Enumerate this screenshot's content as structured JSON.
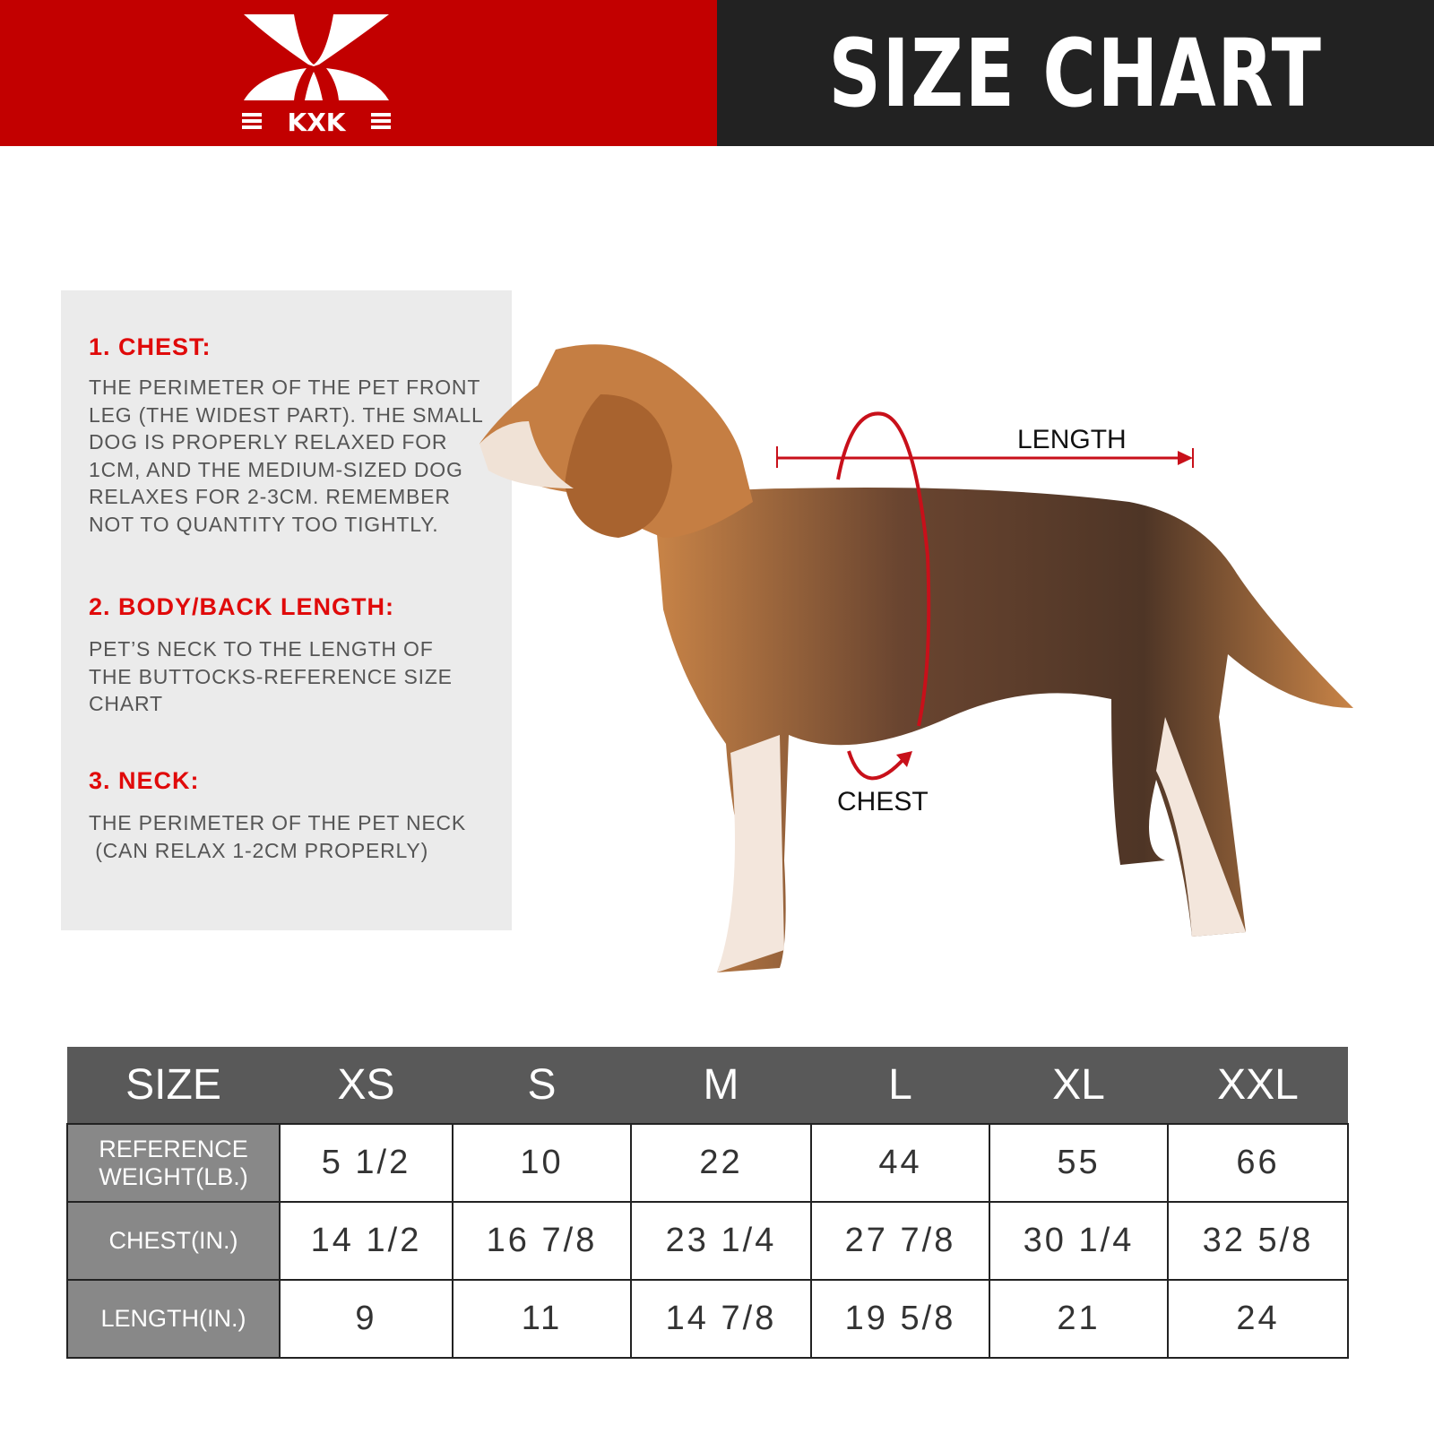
{
  "header": {
    "brand": "KXK",
    "title": "SIZE CHART",
    "colors": {
      "brand_red": "#c20000",
      "dark": "#222222"
    }
  },
  "guide": [
    {
      "heading": "1. CHEST:",
      "body": "THE PERIMETER OF THE PET FRONT\nLEG (THE WIDEST PART). THE SMALL\nDOG IS PROPERLY RELAXED FOR\n1CM, AND THE MEDIUM-SIZED DOG\nRELAXES FOR 2-3CM. REMEMBER\nNOT TO QUANTITY TOO TIGHTLY."
    },
    {
      "heading": "2. BODY/BACK LENGTH:",
      "body": "PET’S NECK TO THE LENGTH OF\nTHE BUTTOCKS-REFERENCE SIZE\nCHART"
    },
    {
      "heading": "3. NECK:",
      "body": "THE PERIMETER OF THE PET NECK\n (CAN RELAX 1-2CM PROPERLY)"
    }
  ],
  "diagram": {
    "length_label": "LENGTH",
    "chest_label": "CHEST"
  },
  "table": {
    "headers": [
      "SIZE",
      "XS",
      "S",
      "M",
      "L",
      "XL",
      "XXL"
    ],
    "rows": [
      {
        "label": "REFERENCE WEIGHT(LB.)",
        "values": [
          "5 1/2",
          "10",
          "22",
          "44",
          "55",
          "66"
        ]
      },
      {
        "label": "CHEST(IN.)",
        "values": [
          "14 1/2",
          "16 7/8",
          "23 1/4",
          "27 7/8",
          "30 1/4",
          "32 5/8"
        ]
      },
      {
        "label": "LENGTH(IN.)",
        "values": [
          "9",
          "11",
          "14 7/8",
          "19 5/8",
          "21",
          "24"
        ]
      }
    ]
  }
}
